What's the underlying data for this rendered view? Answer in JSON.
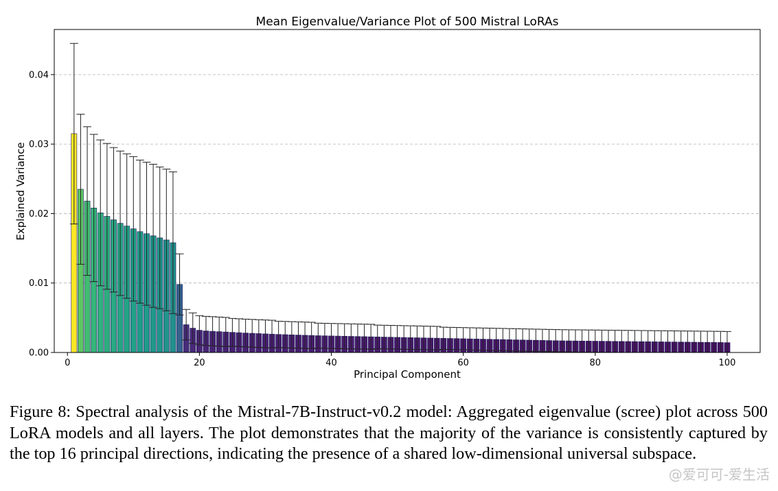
{
  "chart_data": {
    "type": "bar",
    "title": "Mean Eigenvalue/Variance Plot of 500 Mistral LoRAs",
    "xlabel": "Principal Component",
    "ylabel": "Explained Variance",
    "xlim": [
      -2,
      105
    ],
    "ylim": [
      0,
      0.0465
    ],
    "x_ticks": [
      0,
      20,
      40,
      60,
      80,
      100
    ],
    "y_ticks": [
      0.0,
      0.01,
      0.02,
      0.03,
      0.04
    ],
    "x_tick_labels": [
      "0",
      "20",
      "40",
      "60",
      "80",
      "100"
    ],
    "y_tick_labels": [
      "0.00",
      "0.01",
      "0.02",
      "0.03",
      "0.04"
    ],
    "grid": "horizontal dashed",
    "colormap": "viridis",
    "x": [
      1,
      2,
      3,
      4,
      5,
      6,
      7,
      8,
      9,
      10,
      11,
      12,
      13,
      14,
      15,
      16,
      17,
      18,
      19,
      20,
      21,
      22,
      23,
      24,
      25,
      26,
      27,
      28,
      29,
      30,
      31,
      32,
      33,
      34,
      35,
      36,
      37,
      38,
      39,
      40,
      41,
      42,
      43,
      44,
      45,
      46,
      47,
      48,
      49,
      50,
      51,
      52,
      53,
      54,
      55,
      56,
      57,
      58,
      59,
      60,
      61,
      62,
      63,
      64,
      65,
      66,
      67,
      68,
      69,
      70,
      71,
      72,
      73,
      74,
      75,
      76,
      77,
      78,
      79,
      80,
      81,
      82,
      83,
      84,
      85,
      86,
      87,
      88,
      89,
      90,
      91,
      92,
      93,
      94,
      95,
      96,
      97,
      98,
      99,
      100
    ],
    "values": [
      0.0315,
      0.0235,
      0.0218,
      0.0208,
      0.0201,
      0.0196,
      0.0191,
      0.0186,
      0.0182,
      0.0178,
      0.0174,
      0.0171,
      0.0168,
      0.0165,
      0.0162,
      0.0158,
      0.0098,
      0.004,
      0.0035,
      0.0032,
      0.0031,
      0.00305,
      0.003,
      0.00295,
      0.0029,
      0.00285,
      0.0028,
      0.00276,
      0.00272,
      0.00268,
      0.00264,
      0.0026,
      0.00257,
      0.00254,
      0.00251,
      0.00248,
      0.00245,
      0.00242,
      0.0024,
      0.00238,
      0.00236,
      0.00234,
      0.00232,
      0.0023,
      0.00228,
      0.00226,
      0.00224,
      0.00222,
      0.0022,
      0.00218,
      0.00216,
      0.00214,
      0.00212,
      0.0021,
      0.00208,
      0.00206,
      0.00204,
      0.00202,
      0.002,
      0.00198,
      0.00196,
      0.00194,
      0.00192,
      0.0019,
      0.00188,
      0.00186,
      0.00184,
      0.00182,
      0.0018,
      0.00178,
      0.00176,
      0.00174,
      0.00172,
      0.0017,
      0.00168,
      0.00167,
      0.00166,
      0.00165,
      0.00164,
      0.00163,
      0.00162,
      0.00161,
      0.0016,
      0.00159,
      0.00158,
      0.00157,
      0.00156,
      0.00155,
      0.00154,
      0.00153,
      0.00152,
      0.00151,
      0.0015,
      0.00149,
      0.00148,
      0.00147,
      0.00146,
      0.00145,
      0.00144,
      0.00142
    ],
    "errors": [
      0.013,
      0.0108,
      0.0107,
      0.0106,
      0.0105,
      0.0105,
      0.0104,
      0.0104,
      0.0104,
      0.0104,
      0.0103,
      0.0103,
      0.0103,
      0.0102,
      0.0102,
      0.0102,
      0.0044,
      0.0022,
      0.0022,
      0.0021,
      0.0021,
      0.0021,
      0.0021,
      0.0021,
      0.002,
      0.002,
      0.002,
      0.002,
      0.002,
      0.002,
      0.002,
      0.0019,
      0.0019,
      0.0019,
      0.0019,
      0.0019,
      0.0019,
      0.0018,
      0.0018,
      0.0018,
      0.0018,
      0.0018,
      0.0018,
      0.0018,
      0.0018,
      0.0018,
      0.0017,
      0.0017,
      0.0017,
      0.0017,
      0.0017,
      0.0017,
      0.0017,
      0.0017,
      0.0017,
      0.0017,
      0.0016,
      0.0016,
      0.0016,
      0.0016,
      0.0016,
      0.0016,
      0.0016,
      0.0016,
      0.0016,
      0.0016,
      0.0016,
      0.0016,
      0.0016,
      0.0016,
      0.0016,
      0.0016,
      0.0016,
      0.0016,
      0.0016,
      0.0016,
      0.0016,
      0.0016,
      0.0016,
      0.0016,
      0.0016,
      0.0016,
      0.0016,
      0.0016,
      0.0016,
      0.0016,
      0.0016,
      0.0016,
      0.0016,
      0.0016,
      0.0016,
      0.0016,
      0.0016,
      0.0016,
      0.0016,
      0.0016,
      0.0016,
      0.0016,
      0.0016,
      0.0016
    ]
  },
  "caption": "Figure 8: Spectral analysis of the Mistral-7B-Instruct-v0.2 model: Aggregated eigenvalue (scree) plot across 500 LoRA models and all layers. The plot demonstrates that the majority of the variance is consistently captured by the top 16 principal directions, indicating the presence of a shared low-dimensional universal subspace.",
  "watermark": "@爱可可-爱生活"
}
